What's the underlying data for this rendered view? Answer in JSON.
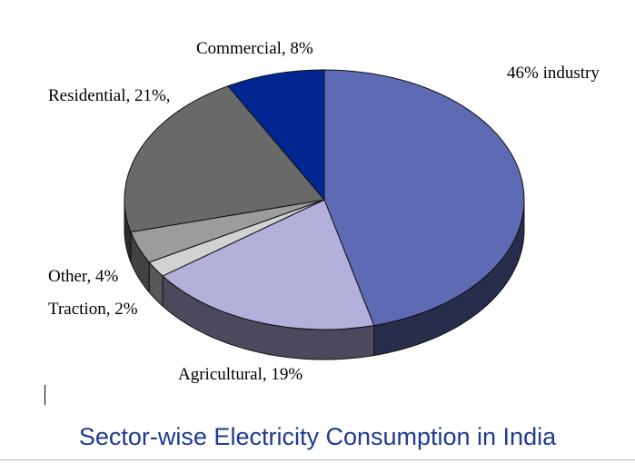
{
  "caption": "Sector-wise Electricity Consumption in India",
  "chart_data": {
    "type": "pie",
    "style": "3d-exploded-none",
    "slices": [
      {
        "label": "46% industry",
        "value": 46,
        "color": "#5f6ab4"
      },
      {
        "label": "Agricultural, 19%",
        "value": 19,
        "color": "#b1b1db"
      },
      {
        "label": "Traction, 2%",
        "value": 2,
        "color": "#d2d2d2"
      },
      {
        "label": "Other, 4%",
        "value": 4,
        "color": "#9c9c9c"
      },
      {
        "label": "Residential, 21%,",
        "value": 21,
        "color": "#696969"
      },
      {
        "label": "Commercial, 8%",
        "value": 8,
        "color": "#022691"
      }
    ],
    "title": "",
    "legend": "none"
  }
}
